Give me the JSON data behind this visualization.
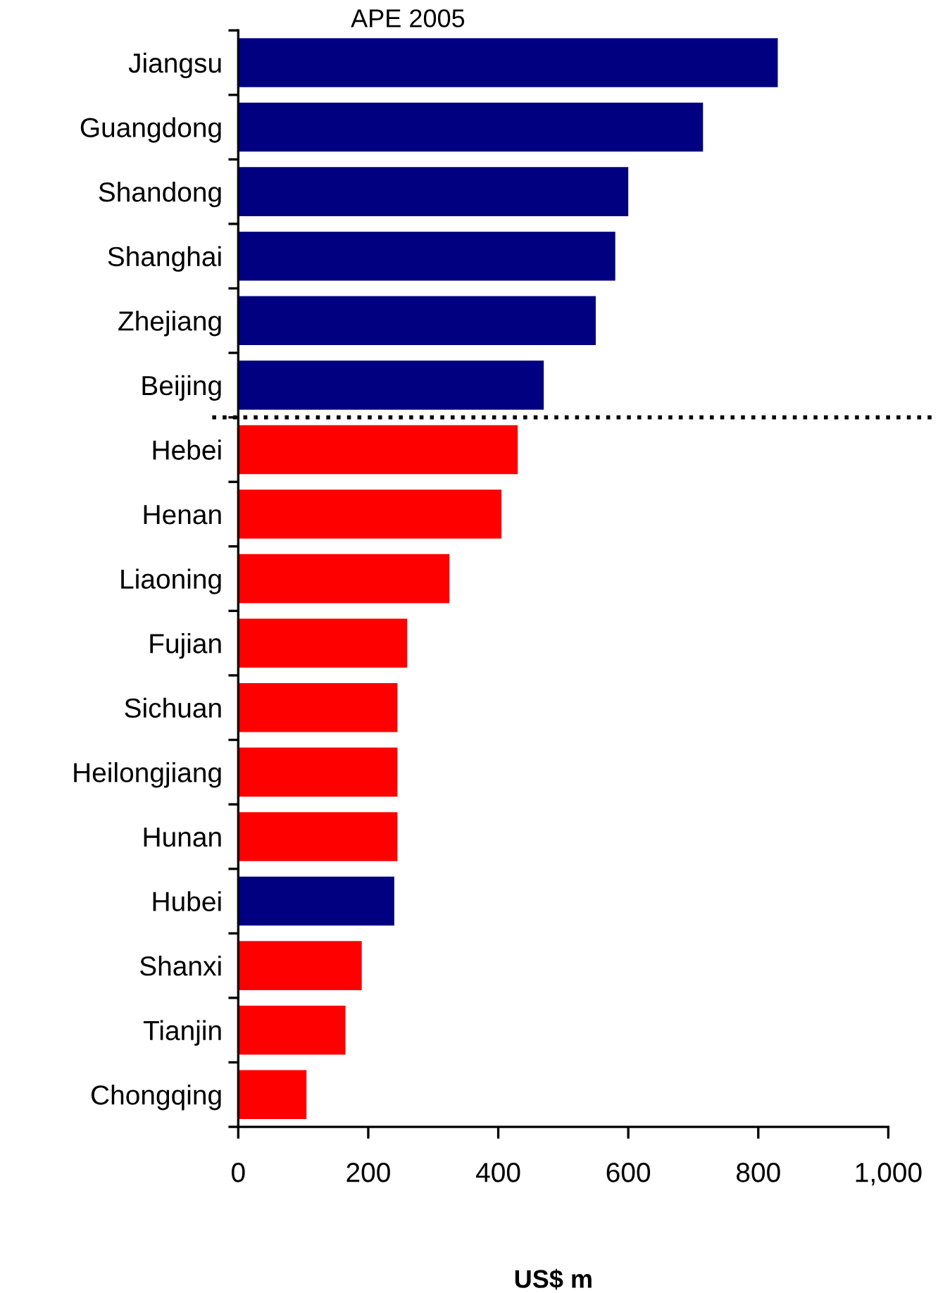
{
  "chart_data": {
    "type": "bar",
    "orientation": "horizontal",
    "title": "APE 2005",
    "xlabel": "US$ m",
    "categories": [
      "Jiangsu",
      "Guangdong",
      "Shandong",
      "Shanghai",
      "Zhejiang",
      "Beijing",
      "Hebei",
      "Henan",
      "Liaoning",
      "Fujian",
      "Sichuan",
      "Heilongjiang",
      "Hunan",
      "Hubei",
      "Shanxi",
      "Tianjin",
      "Chongqing"
    ],
    "values": [
      830,
      715,
      600,
      580,
      550,
      470,
      430,
      405,
      325,
      260,
      245,
      245,
      245,
      240,
      190,
      165,
      105
    ],
    "colors": [
      "#000080",
      "#000080",
      "#000080",
      "#000080",
      "#000080",
      "#000080",
      "#ff0000",
      "#ff0000",
      "#ff0000",
      "#ff0000",
      "#ff0000",
      "#ff0000",
      "#ff0000",
      "#000080",
      "#ff0000",
      "#ff0000",
      "#ff0000"
    ],
    "xlim": [
      0,
      1000
    ],
    "xticks": [
      0,
      200,
      400,
      600,
      800,
      {
        "value": 1000,
        "label": "1,000"
      }
    ],
    "grid": false,
    "legend": false
  }
}
